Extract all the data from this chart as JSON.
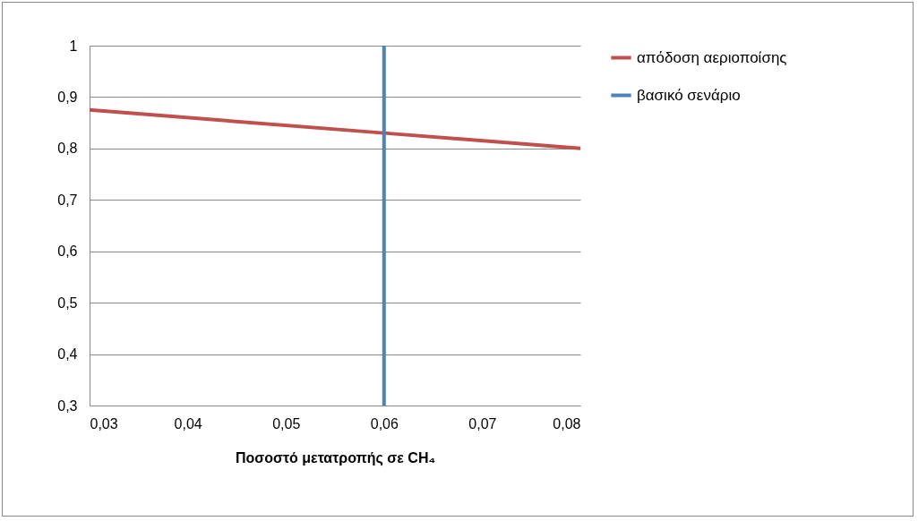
{
  "chart_data": {
    "type": "line",
    "xlabel": "Ποσοστό μετατροπής σε CH₄",
    "xlim": [
      0.03,
      0.08
    ],
    "xticks": [
      {
        "value": 0.03,
        "label": "0,03"
      },
      {
        "value": 0.04,
        "label": "0,04"
      },
      {
        "value": 0.05,
        "label": "0,05"
      },
      {
        "value": 0.06,
        "label": "0,06"
      },
      {
        "value": 0.07,
        "label": "0,07"
      },
      {
        "value": 0.08,
        "label": "0,08"
      }
    ],
    "ylim": [
      0.3,
      1
    ],
    "yticks": [
      {
        "value": 0.3,
        "label": "0,3"
      },
      {
        "value": 0.4,
        "label": "0,4"
      },
      {
        "value": 0.5,
        "label": "0,5"
      },
      {
        "value": 0.6,
        "label": "0,6"
      },
      {
        "value": 0.7,
        "label": "0,7"
      },
      {
        "value": 0.8,
        "label": "0,8"
      },
      {
        "value": 0.9,
        "label": "0,9"
      },
      1
    ],
    "series": [
      {
        "name": "απόδοση αεριοποίσης",
        "color": "#c0504d",
        "x": [
          0.03,
          0.06,
          0.08
        ],
        "values": [
          0.875,
          0.83,
          0.8
        ]
      },
      {
        "name": "βασικό σενάριο",
        "color": "#4f81bd",
        "x": [
          0.06,
          0.06
        ],
        "values": [
          0.3,
          1
        ]
      }
    ],
    "grid": "y",
    "legend": "right",
    "marker": "none",
    "line_style": "solid"
  }
}
